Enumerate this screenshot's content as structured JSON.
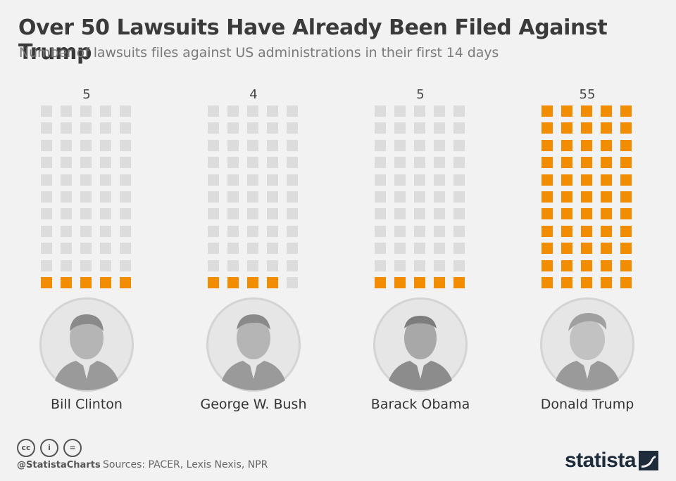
{
  "title": "Over 50 Lawsuits Have Already Been Filed Against Trump",
  "subtitle": "Number of lawsuits files against US administrations in their first 14 days",
  "colors": {
    "filled": "#f28c00",
    "empty": "#dcdcdc",
    "background": "#f2f2f2"
  },
  "chart_data": {
    "type": "bar",
    "title": "Over 50 Lawsuits Have Already Been Filed Against Trump",
    "subtitle": "Number of lawsuits files against US administrations in their first 14 days",
    "categories": [
      "Bill Clinton",
      "George W. Bush",
      "Barack Obama",
      "Donald Trump"
    ],
    "values": [
      5,
      4,
      5,
      55
    ],
    "value_labels": [
      "5",
      "4",
      "5",
      "55"
    ],
    "grid_columns": 5,
    "grid_rows": 11,
    "xlabel": "",
    "ylabel": ""
  },
  "footer": {
    "handle": "@StatistaCharts",
    "sources": "Sources: PACER, Lexis Nexis, NPR",
    "brand": "statista",
    "license_icons": [
      "cc-icon",
      "by-icon",
      "nd-icon"
    ],
    "license_glyphs": [
      "cc",
      "i",
      "="
    ]
  }
}
